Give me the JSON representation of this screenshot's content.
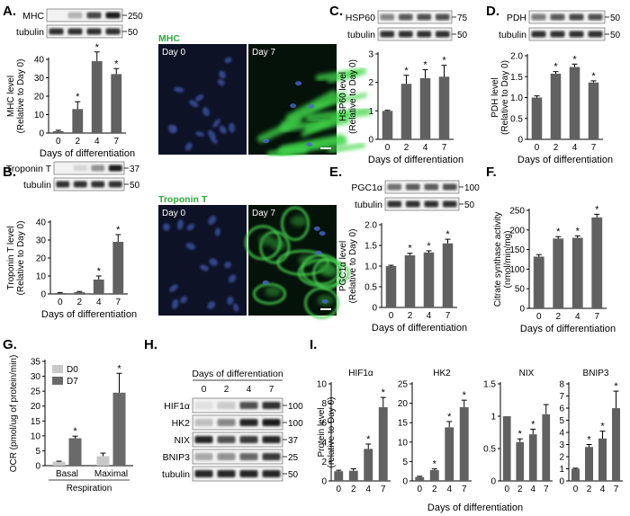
{
  "figure": {
    "panels": {
      "A": {
        "letter": "A.",
        "blot": {
          "rows": [
            {
              "label": "MHC",
              "mw": "250"
            },
            {
              "label": "tubulin",
              "mw": "50"
            }
          ],
          "bands": [
            [
              0.0,
              0.25,
              0.75,
              0.95
            ],
            [
              0.85,
              0.85,
              0.85,
              0.85
            ]
          ]
        },
        "micro": {
          "stain": "MHC",
          "left": "Day 0",
          "right": "Day 7"
        }
      },
      "B": {
        "letter": "B.",
        "blot": {
          "rows": [
            {
              "label": "Troponin T",
              "mw": "37"
            },
            {
              "label": "tubulin",
              "mw": "50"
            }
          ],
          "bands": [
            [
              0.0,
              0.1,
              0.4,
              0.95
            ],
            [
              0.85,
              0.85,
              0.85,
              0.85
            ]
          ]
        },
        "micro": {
          "stain": "Troponin T",
          "left": "Day 0",
          "right": "Day 7"
        }
      },
      "C": {
        "letter": "C.",
        "blot": {
          "rows": [
            {
              "label": "HSP60",
              "mw": "75"
            },
            {
              "label": "tubulin",
              "mw": "50"
            }
          ],
          "bands": [
            [
              0.45,
              0.65,
              0.7,
              0.7
            ],
            [
              0.85,
              0.85,
              0.85,
              0.85
            ]
          ]
        }
      },
      "D": {
        "letter": "D.",
        "blot": {
          "rows": [
            {
              "label": "PDH",
              "mw": "50"
            },
            {
              "label": "tubulin",
              "mw": "50"
            }
          ],
          "bands": [
            [
              0.5,
              0.65,
              0.75,
              0.7
            ],
            [
              0.85,
              0.85,
              0.85,
              0.85
            ]
          ]
        }
      },
      "E": {
        "letter": "E.",
        "blot": {
          "rows": [
            {
              "label": "PGC1α",
              "mw": "100"
            },
            {
              "label": "tubulin",
              "mw": "50"
            }
          ],
          "bands": [
            [
              0.55,
              0.65,
              0.65,
              0.7
            ],
            [
              0.85,
              0.85,
              0.85,
              0.85
            ]
          ]
        }
      },
      "F": {
        "letter": "F."
      },
      "G": {
        "letter": "G."
      },
      "H": {
        "letter": "H.",
        "header": "Days of differentiation",
        "days": [
          "0",
          "2",
          "4",
          "7"
        ],
        "rows": [
          {
            "label": "HIF1α",
            "mw": "100"
          },
          {
            "label": "HK2",
            "mw": "100"
          },
          {
            "label": "NIX",
            "mw": "37"
          },
          {
            "label": "BNIP3",
            "mw": "25"
          },
          {
            "label": "tubulin",
            "mw": "50"
          }
        ],
        "bands": [
          [
            0.05,
            0.15,
            0.7,
            0.85
          ],
          [
            0.2,
            0.45,
            0.9,
            0.95
          ],
          [
            0.9,
            0.7,
            0.8,
            0.9
          ],
          [
            0.3,
            0.4,
            0.6,
            0.8
          ],
          [
            0.9,
            0.9,
            0.9,
            0.9
          ]
        ]
      },
      "I": {
        "letter": "I.",
        "xlabel": "Days of differentiation"
      }
    }
  },
  "chart_data": [
    {
      "id": "A",
      "type": "bar",
      "categories": [
        "0",
        "2",
        "4",
        "7"
      ],
      "values": [
        1,
        13,
        39,
        32
      ],
      "errors": [
        0.5,
        4,
        5,
        3
      ],
      "significant": [
        false,
        true,
        true,
        true
      ],
      "ylabel": [
        "MHC level",
        "(Relative to Day 0)"
      ],
      "xlabel": "Days of differentiation",
      "ylim": [
        0,
        40
      ],
      "ticks": [
        0,
        10,
        20,
        30,
        40
      ]
    },
    {
      "id": "B",
      "type": "bar",
      "categories": [
        "0",
        "2",
        "4",
        "7"
      ],
      "values": [
        0.5,
        1,
        8,
        29
      ],
      "errors": [
        0.3,
        0.4,
        2,
        4
      ],
      "significant": [
        false,
        false,
        true,
        true
      ],
      "ylabel": [
        "Troponin T level",
        "(Relative to Day 0)"
      ],
      "xlabel": "Days of differentiation",
      "ylim": [
        0,
        40
      ],
      "ticks": [
        0,
        10,
        20,
        30,
        40
      ]
    },
    {
      "id": "C",
      "type": "bar",
      "categories": [
        "0",
        "2",
        "4",
        "7"
      ],
      "values": [
        1,
        1.95,
        2.15,
        2.2
      ],
      "errors": [
        0.02,
        0.3,
        0.3,
        0.4
      ],
      "significant": [
        false,
        true,
        true,
        true
      ],
      "ylabel": [
        "HSP60 level",
        "(Relative to Day 0)"
      ],
      "xlabel": "Days of differentiation",
      "ylim": [
        0,
        3
      ],
      "ticks": [
        0,
        1,
        2,
        3
      ]
    },
    {
      "id": "D",
      "type": "bar",
      "categories": [
        "0",
        "2",
        "4",
        "7"
      ],
      "values": [
        1,
        1.57,
        1.73,
        1.36
      ],
      "errors": [
        0.04,
        0.05,
        0.07,
        0.04
      ],
      "significant": [
        false,
        true,
        true,
        true
      ],
      "ylabel": [
        "PDH level",
        "(Relative to Day 0)"
      ],
      "xlabel": "Days of differentiation",
      "ylim": [
        0,
        2
      ],
      "ticks": [
        0,
        0.5,
        1,
        1.5,
        2
      ],
      "ticklabels": [
        "0",
        "0.5",
        "1.0",
        "1.5",
        "2.0"
      ]
    },
    {
      "id": "E",
      "type": "bar",
      "categories": [
        "0",
        "2",
        "4",
        "7"
      ],
      "values": [
        1,
        1.26,
        1.33,
        1.55
      ],
      "errors": [
        0.02,
        0.05,
        0.04,
        0.1
      ],
      "significant": [
        false,
        true,
        true,
        true
      ],
      "ylabel": [
        "PGC1α level",
        "(Relative to Day 0)"
      ],
      "xlabel": "Days of differentiation",
      "ylim": [
        0,
        2
      ],
      "ticks": [
        0,
        0.5,
        1,
        1.5,
        2
      ],
      "ticklabels": [
        "0",
        "0.5",
        "1.0",
        "1.5",
        "2.0"
      ]
    },
    {
      "id": "F",
      "type": "bar",
      "categories": [
        "0",
        "2",
        "4",
        "7"
      ],
      "values": [
        132,
        178,
        180,
        232
      ],
      "errors": [
        5,
        5,
        5,
        8
      ],
      "significant": [
        false,
        true,
        true,
        true
      ],
      "ylabel": [
        "Citrate synthase activity",
        "(nmol/min/mg)"
      ],
      "xlabel": "Days of differentiation",
      "ylim": [
        0,
        250
      ],
      "ticks": [
        0,
        50,
        100,
        150,
        200,
        250
      ]
    },
    {
      "id": "G",
      "type": "bar",
      "groups": [
        "Basal",
        "Maximal"
      ],
      "grouplabel": "Respiration",
      "series": [
        {
          "name": "D0",
          "color": "#c8c8c8",
          "values": [
            1.3,
            3.2
          ],
          "errors": [
            0.2,
            1.0
          ]
        },
        {
          "name": "D7",
          "color": "#6a6a6a",
          "values": [
            9.2,
            24.5
          ],
          "errors": [
            0.7,
            6.5
          ]
        }
      ],
      "significant": [
        true,
        true
      ],
      "ylabel": [
        "OCR (pmol/ug of protein/min)"
      ],
      "ylim": [
        0,
        35
      ],
      "ticks": [
        0,
        5,
        10,
        15,
        20,
        25,
        30,
        35
      ]
    },
    {
      "id": "I1",
      "type": "bar",
      "title": "HIF1α",
      "categories": [
        "0",
        "2",
        "4",
        "7"
      ],
      "values": [
        1,
        1.05,
        3.3,
        7.6
      ],
      "errors": [
        0.1,
        0.2,
        0.5,
        1.0
      ],
      "significant": [
        false,
        false,
        true,
        true
      ],
      "ylabel": [
        "Protein level",
        "(relative to Day 0)"
      ],
      "ylim": [
        0,
        10
      ],
      "ticks": [
        0,
        2,
        4,
        6,
        8,
        10
      ]
    },
    {
      "id": "I2",
      "type": "bar",
      "title": "HK2",
      "categories": [
        "0",
        "2",
        "4",
        "7"
      ],
      "values": [
        1,
        2.8,
        13.8,
        19
      ],
      "errors": [
        0.2,
        0.3,
        1.5,
        1.8
      ],
      "significant": [
        false,
        true,
        true,
        true
      ],
      "ylim": [
        0,
        25
      ],
      "ticks": [
        0,
        5,
        10,
        15,
        20,
        25
      ]
    },
    {
      "id": "I3",
      "type": "bar",
      "title": "NIX",
      "categories": [
        "0",
        "2",
        "4",
        "7"
      ],
      "values": [
        1,
        0.6,
        0.72,
        1.03
      ],
      "errors": [
        0,
        0.05,
        0.08,
        0.15
      ],
      "significant": [
        false,
        true,
        true,
        false
      ],
      "ylim": [
        0,
        1.5
      ],
      "ticks": [
        0,
        0.5,
        1,
        1.5
      ],
      "ticklabels": [
        "0",
        "0.5",
        "1",
        "1.5"
      ]
    },
    {
      "id": "I4",
      "type": "bar",
      "title": "BNIP3",
      "categories": [
        "0",
        "2",
        "4",
        "7"
      ],
      "values": [
        1,
        2.8,
        3.5,
        6
      ],
      "errors": [
        0.05,
        0.2,
        0.6,
        1.4
      ],
      "significant": [
        false,
        true,
        true,
        true
      ],
      "ylim": [
        0,
        8
      ],
      "ticks": [
        0,
        1,
        2,
        3,
        4,
        5,
        6,
        7,
        8
      ]
    }
  ]
}
